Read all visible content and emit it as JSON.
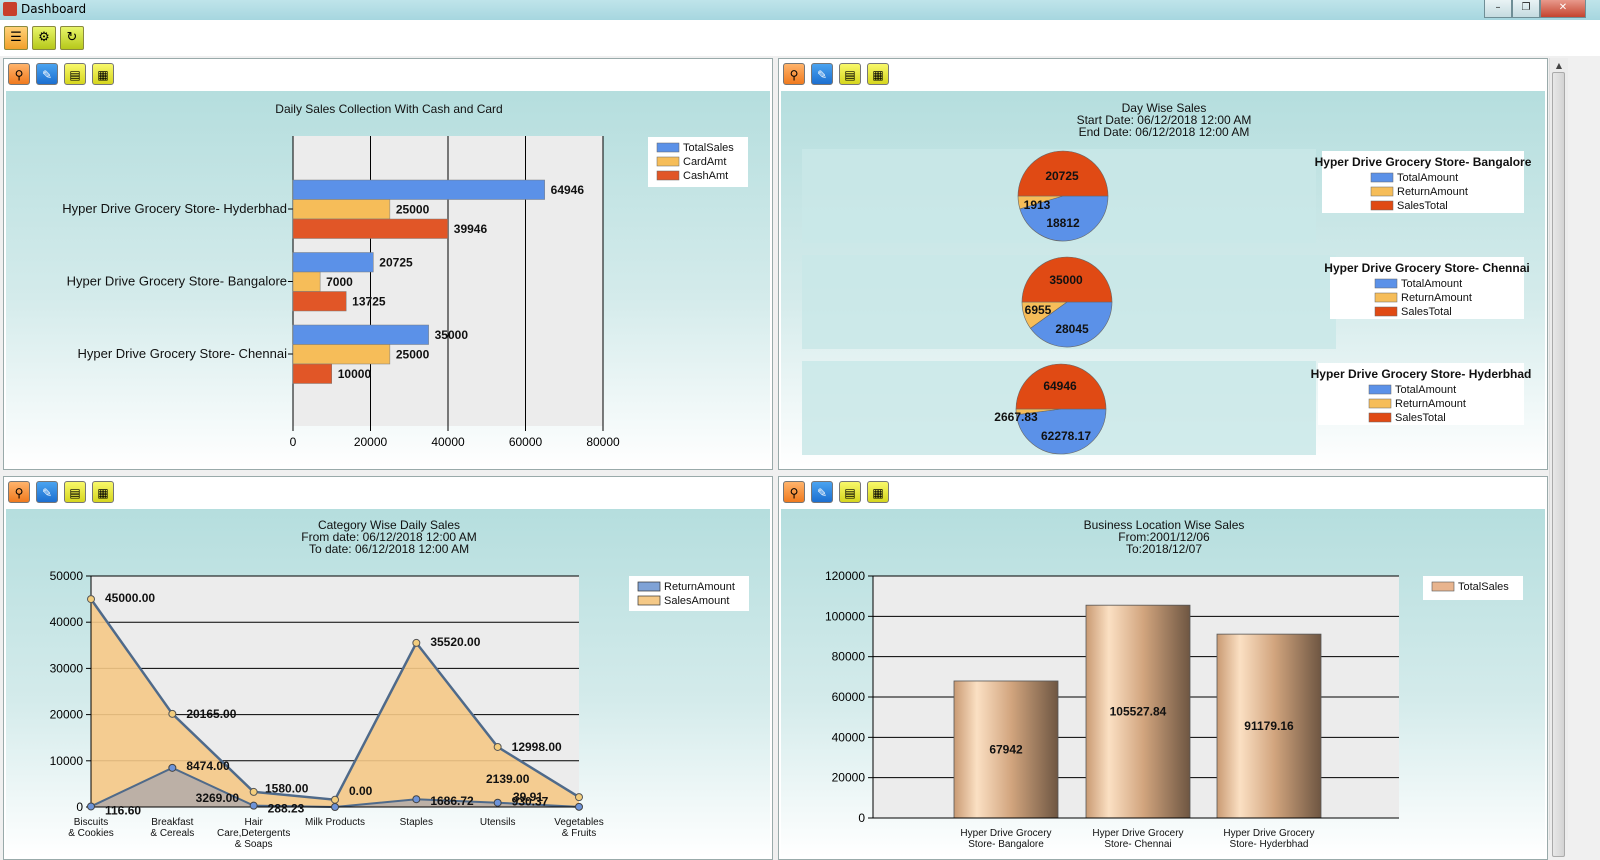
{
  "window": {
    "title": "Dashboard",
    "minimize": "–",
    "maximize": "❐",
    "close": "✕"
  },
  "toolbar": {
    "icons": [
      "report-icon",
      "settings-gear-icon",
      "refresh-icon"
    ],
    "glyphs": [
      "☰",
      "⚙",
      "↻"
    ]
  },
  "panel_tools": {
    "glyphs": [
      "⚲",
      "✎",
      "▤",
      "▦"
    ]
  },
  "colors": {
    "total": "#5b91e8",
    "card": "#f6bd59",
    "cash": "#e15627",
    "return": "#f6bd59",
    "sales": "#e04a14",
    "area_sales": "#f5c987",
    "area_return": "#a9a7ad"
  },
  "chart_data": [
    {
      "type": "bar",
      "orientation": "horizontal",
      "title": "Daily Sales Collection With Cash and Card",
      "categories": [
        "Hyper Drive Grocery Store- Hyderbhad",
        "Hyper Drive Grocery Store- Bangalore",
        "Hyper Drive Grocery Store- Chennai"
      ],
      "series": [
        {
          "name": "TotalSales",
          "values": [
            64946,
            20725,
            35000
          ]
        },
        {
          "name": "CardAmt",
          "values": [
            25000,
            7000,
            25000
          ]
        },
        {
          "name": "CashAmt",
          "values": [
            39946,
            13725,
            10000
          ]
        }
      ],
      "value_labels": [
        [
          "64946",
          "25000",
          "39946"
        ],
        [
          "20725",
          "7000",
          "13725"
        ],
        [
          "35000",
          "25000",
          "10000"
        ]
      ],
      "xlim": [
        0,
        80000
      ],
      "xticks": [
        "0",
        "20000",
        "40000",
        "60000",
        "80000"
      ],
      "legend": [
        "TotalSales",
        "CardAmt",
        "CashAmt"
      ]
    },
    {
      "type": "pie",
      "title": "Day Wise Sales",
      "subtitle": [
        "Start Date: 06/12/2018 12:00 AM",
        "End Date: 06/12/2018 12:00 AM"
      ],
      "legend": [
        "TotalAmount",
        "ReturnAmount",
        "SalesTotal"
      ],
      "pies": [
        {
          "name": "Hyper Drive Grocery Store- Bangalore",
          "values": [
            18812,
            1913,
            20725
          ],
          "labels": [
            "18812",
            "1913",
            "20725"
          ]
        },
        {
          "name": "Hyper Drive Grocery Store- Chennai",
          "values": [
            28045,
            6955,
            35000
          ],
          "labels": [
            "28045",
            "6955",
            "35000"
          ]
        },
        {
          "name": "Hyper Drive Grocery Store- Hyderbhad",
          "values": [
            62278.17,
            2667.83,
            64946
          ],
          "labels": [
            "62278.17",
            "2667.83",
            "64946"
          ]
        }
      ]
    },
    {
      "type": "area",
      "title": "Category Wise Daily Sales",
      "subtitle": [
        "From date: 06/12/2018 12:00 AM",
        "To date: 06/12/2018 12:00 AM"
      ],
      "categories": [
        [
          "Biscuits",
          "& Cookies"
        ],
        [
          "Breakfast",
          "& Cereals"
        ],
        [
          "Hair",
          "Care,Detergents",
          "& Soaps"
        ],
        [
          "Milk Products"
        ],
        [
          "Staples"
        ],
        [
          "Utensils"
        ],
        [
          "Vegetables",
          "& Fruits"
        ]
      ],
      "series": [
        {
          "name": "ReturnAmount",
          "values": [
            116.6,
            8474,
            288.23,
            0,
            1686.72,
            930.37,
            39.91
          ],
          "labels": [
            "116.60",
            "8474.00",
            "288.23",
            "0.00",
            "1686.72",
            "930.37",
            "39.91"
          ]
        },
        {
          "name": "SalesAmount",
          "values": [
            45000,
            20165,
            3269,
            1580,
            35520,
            12998,
            2139
          ],
          "labels": [
            "45000.00",
            "20165.00",
            "3269.00",
            "1580.00",
            "35520.00",
            "12998.00",
            "2139.00"
          ]
        }
      ],
      "ylim": [
        0,
        50000
      ],
      "yticks": [
        "0",
        "10000",
        "20000",
        "30000",
        "40000",
        "50000"
      ],
      "legend": [
        "ReturnAmount",
        "SalesAmount"
      ]
    },
    {
      "type": "bar",
      "title": "Business Location Wise Sales",
      "subtitle": [
        "From:2001/12/06",
        "To:2018/12/07"
      ],
      "categories": [
        [
          "Hyper Drive Grocery",
          "Store- Bangalore"
        ],
        [
          "Hyper Drive Grocery",
          "Store- Chennai"
        ],
        [
          "Hyper Drive Grocery",
          "Store- Hyderbhad"
        ]
      ],
      "series": [
        {
          "name": "TotalSales",
          "values": [
            67942,
            105527.84,
            91179.16
          ],
          "labels": [
            "67942",
            "105527.84",
            "91179.16"
          ]
        }
      ],
      "ylim": [
        0,
        120000
      ],
      "yticks": [
        "0",
        "20000",
        "40000",
        "60000",
        "80000",
        "100000",
        "120000"
      ],
      "legend": [
        "TotalSales"
      ]
    }
  ]
}
